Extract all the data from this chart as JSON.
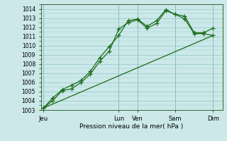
{
  "xlabel": "Pression niveau de la mer( hPa )",
  "background_color": "#cce8e8",
  "grid_color": "#99cccc",
  "line_color": "#1a6b1a",
  "ylim": [
    1003,
    1014.5
  ],
  "yticks": [
    1003,
    1004,
    1005,
    1006,
    1007,
    1008,
    1009,
    1010,
    1011,
    1012,
    1013,
    1014
  ],
  "x_day_labels": [
    "Jeu",
    "Lun",
    "Ven",
    "Sam",
    "Dim"
  ],
  "x_day_positions": [
    0,
    32,
    40,
    56,
    72
  ],
  "series1_x": [
    0,
    4,
    8,
    12,
    16,
    20,
    24,
    28,
    32,
    36,
    40,
    44,
    48,
    52,
    56,
    60,
    64,
    68,
    72
  ],
  "series1_y": [
    1003.2,
    1004.0,
    1005.1,
    1005.3,
    1006.0,
    1006.9,
    1008.3,
    1009.4,
    1011.8,
    1012.5,
    1012.8,
    1011.9,
    1012.4,
    1013.8,
    1013.4,
    1013.2,
    1011.4,
    1011.4,
    1011.9
  ],
  "series2_x": [
    0,
    4,
    8,
    12,
    16,
    20,
    24,
    28,
    32,
    36,
    40,
    44,
    48,
    52,
    56,
    60,
    64,
    68,
    72
  ],
  "series2_y": [
    1003.2,
    1004.3,
    1005.2,
    1005.7,
    1006.2,
    1007.2,
    1008.7,
    1009.9,
    1011.1,
    1012.7,
    1012.9,
    1012.1,
    1012.7,
    1013.9,
    1013.4,
    1012.9,
    1011.3,
    1011.3,
    1011.1
  ],
  "series3_x": [
    0,
    72
  ],
  "series3_y": [
    1003.2,
    1011.1
  ],
  "vline_x": [
    0,
    32,
    40,
    56,
    72
  ],
  "xlim": [
    -1,
    76
  ]
}
